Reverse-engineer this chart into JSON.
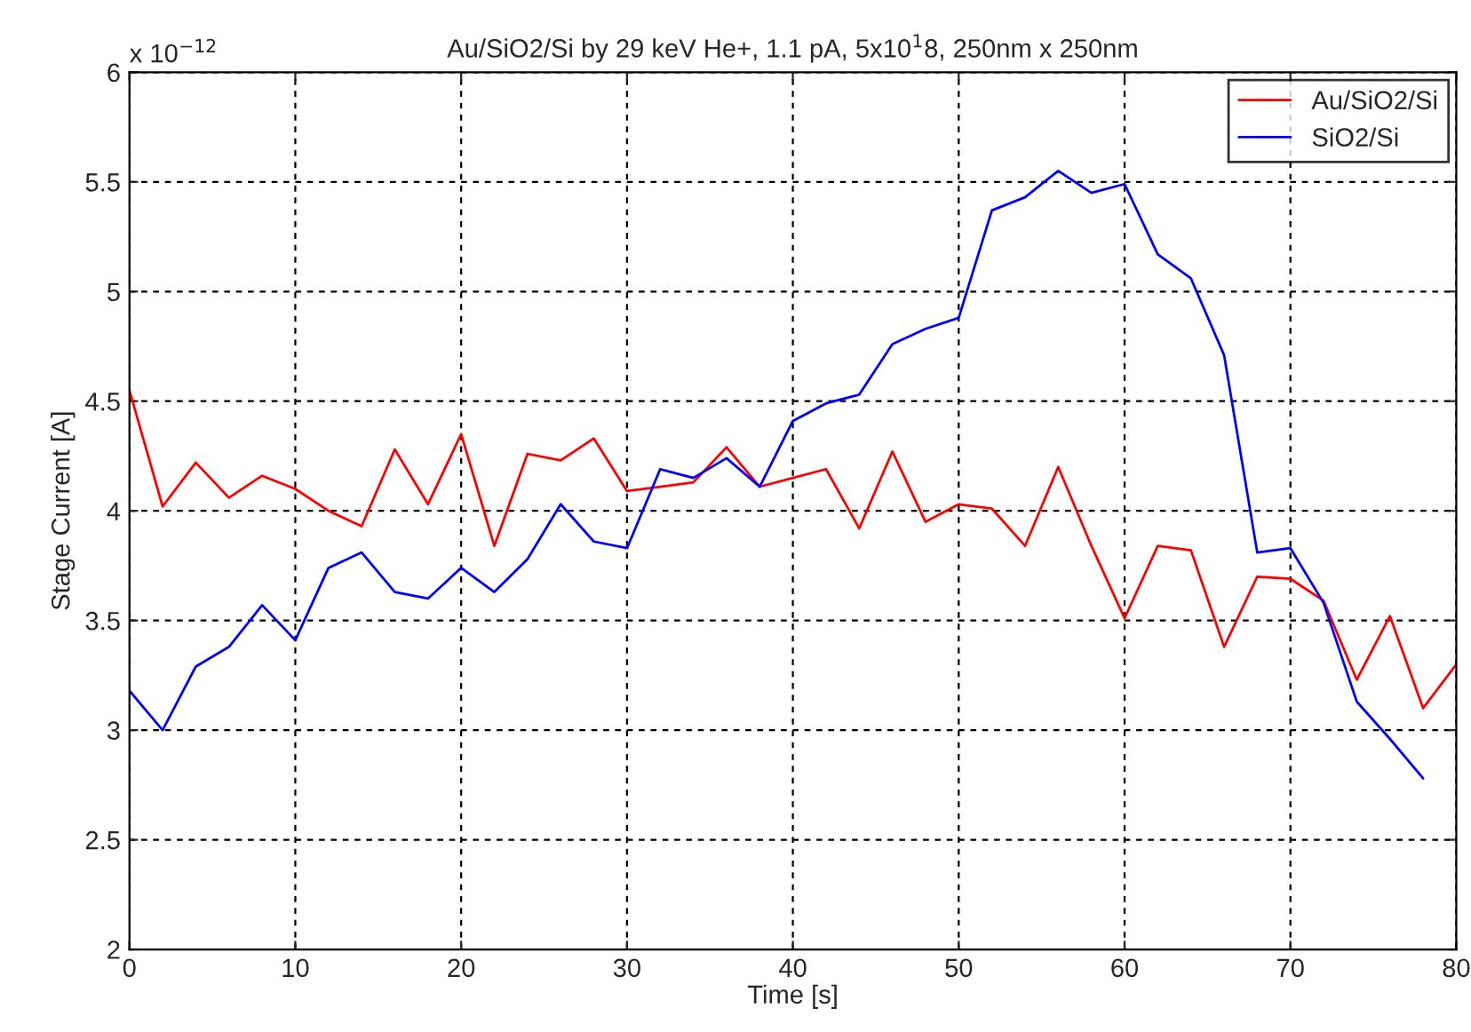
{
  "chart_data": {
    "type": "line",
    "title": "Au/SiO2/Si by 29 keV He+, 1.1 pA, 5x10$^{1}$8, 250nm x 250nm",
    "xlabel": "Time [s]",
    "ylabel": "Stage Current [A]",
    "annotations": [
      "x 10$^{−12}$"
    ],
    "x": [
      0,
      2,
      4,
      6,
      8,
      10,
      12,
      14,
      16,
      18,
      20,
      22,
      24,
      26,
      28,
      30,
      32,
      34,
      36,
      38,
      40,
      42,
      44,
      46,
      48,
      50,
      52,
      54,
      56,
      58,
      60,
      62,
      64,
      66,
      68,
      70,
      72,
      74,
      76,
      78,
      80
    ],
    "series": [
      {
        "name": "Au/SiO2/Si",
        "color": "#ff0000",
        "values": [
          4.55,
          4.02,
          4.22,
          4.06,
          4.16,
          4.1,
          4.0,
          3.93,
          4.28,
          4.03,
          4.35,
          3.84,
          4.26,
          4.23,
          4.33,
          4.09,
          4.11,
          4.13,
          4.29,
          4.11,
          4.15,
          4.19,
          3.92,
          4.27,
          3.95,
          4.03,
          4.01,
          3.84,
          4.2,
          3.84,
          3.51,
          3.84,
          3.82,
          3.38,
          3.7,
          3.69,
          3.59,
          3.23,
          3.52,
          3.1,
          3.3
        ]
      },
      {
        "name": "SiO2/Si",
        "color": "#0000ff",
        "x": [
          0,
          2,
          4,
          6,
          8,
          10,
          12,
          14,
          16,
          18,
          20,
          22,
          24,
          26,
          28,
          30,
          32,
          34,
          36,
          38,
          40,
          42,
          44,
          46,
          48,
          50,
          52,
          54,
          56,
          58,
          60,
          62,
          64,
          66,
          68,
          70,
          72,
          74,
          76,
          78
        ],
        "values": [
          3.18,
          3.0,
          3.29,
          3.38,
          3.57,
          3.41,
          3.74,
          3.81,
          3.63,
          3.6,
          3.74,
          3.63,
          3.78,
          4.03,
          3.86,
          3.83,
          4.19,
          4.15,
          4.24,
          4.11,
          4.41,
          4.49,
          4.53,
          4.76,
          4.83,
          4.88,
          5.37,
          5.43,
          5.55,
          5.45,
          5.49,
          5.17,
          5.06,
          4.71,
          3.81,
          3.83,
          3.58,
          3.13,
          2.96,
          2.78
        ]
      }
    ],
    "xlim": [
      0,
      80
    ],
    "xticks": [
      0,
      10,
      20,
      30,
      40,
      50,
      60,
      70,
      80
    ],
    "ylim": [
      2,
      6
    ],
    "yticks": [
      2,
      2.5,
      3,
      3.5,
      4,
      4.5,
      5,
      5.5,
      6
    ],
    "grid": true,
    "legend": "top right",
    "line_style": "solid",
    "marker": "none"
  }
}
